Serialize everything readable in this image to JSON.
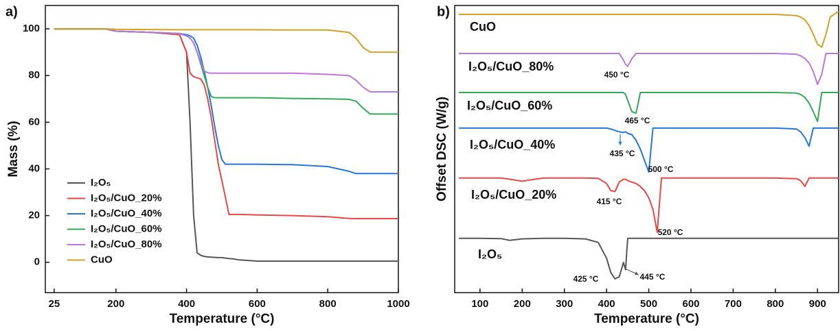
{
  "chart_data": [
    {
      "type": "line",
      "panel_label": "a)",
      "x_label": "Temperature (°C)",
      "y_label": "Mass (%)",
      "xlim": [
        0,
        1000
      ],
      "xticks": [
        25,
        200,
        400,
        600,
        800,
        1000
      ],
      "ylim": [
        -13,
        110
      ],
      "yticks": [
        0,
        20,
        40,
        60,
        80,
        100
      ],
      "legend": "lower left",
      "x": [
        25,
        100,
        170,
        200,
        300,
        380,
        400,
        410,
        420,
        430,
        440,
        450,
        460,
        470,
        480,
        490,
        500,
        510,
        520,
        530,
        550,
        600,
        700,
        800,
        860,
        880,
        900,
        920,
        950,
        1000
      ],
      "series": [
        {
          "name": "I₂O₅",
          "color": "#555555",
          "values": [
            100,
            100,
            100,
            99,
            98.5,
            97.5,
            90,
            60,
            20,
            4,
            3,
            2.5,
            2.3,
            2.2,
            2.1,
            2,
            2,
            1.8,
            1.6,
            1.5,
            1,
            0.5,
            0.5,
            0.5,
            0.5,
            0.5,
            0.5,
            0.5,
            0.5,
            0.5
          ]
        },
        {
          "name": "I₂O₅/CuO_20%",
          "color": "#ee4444",
          "values": [
            100,
            100,
            100,
            99,
            98.5,
            97.5,
            90,
            81,
            79.5,
            79,
            78.5,
            76,
            70,
            62,
            52,
            42,
            35,
            28,
            20.5,
            20.5,
            20.5,
            20.3,
            20,
            19.5,
            18.8,
            18.7,
            18.7,
            18.7,
            18.7,
            18.7
          ]
        },
        {
          "name": "I₂O₅/CuO_40%",
          "color": "#2277dd",
          "values": [
            100,
            100,
            100,
            99,
            98.5,
            98,
            97.5,
            97,
            96,
            93,
            88,
            82,
            75,
            67,
            58,
            50,
            44,
            42,
            42,
            42,
            42,
            42,
            41.8,
            41,
            39,
            38,
            38,
            38,
            38,
            38
          ]
        },
        {
          "name": "I₂O₅/CuO_60%",
          "color": "#33aa55",
          "values": [
            100,
            100,
            100,
            99,
            98.5,
            98,
            97,
            96,
            94,
            90,
            85,
            80,
            75,
            71,
            70.5,
            70.5,
            70.5,
            70.5,
            70.5,
            70.5,
            70.5,
            70.5,
            70.2,
            70,
            69.8,
            69,
            66,
            63.5,
            63.5,
            63.5
          ]
        },
        {
          "name": "I₂O₅/CuO_80%",
          "color": "#bb77dd",
          "values": [
            100,
            100,
            100,
            99,
            98.5,
            98,
            97,
            96,
            94,
            90,
            86,
            82,
            81.2,
            81,
            81,
            81,
            81,
            81,
            81,
            81,
            81,
            81,
            81,
            80.5,
            80,
            78,
            75,
            73,
            73,
            73
          ]
        },
        {
          "name": "CuO",
          "color": "#d4a020",
          "values": [
            100,
            100,
            100,
            99.8,
            99.7,
            99.6,
            99.6,
            99.6,
            99.6,
            99.6,
            99.6,
            99.6,
            99.6,
            99.6,
            99.6,
            99.6,
            99.6,
            99.6,
            99.6,
            99.6,
            99.6,
            99.6,
            99.5,
            99.5,
            98.5,
            96,
            92,
            90,
            90,
            90
          ]
        }
      ]
    },
    {
      "type": "line",
      "panel_label": "b)",
      "x_label": "Temperature (°C)",
      "y_label": "Offset DSC (W/g)",
      "xlim": [
        40,
        950
      ],
      "xticks": [
        100,
        200,
        300,
        400,
        500,
        600,
        700,
        800,
        900
      ],
      "ylim": [
        0,
        100
      ],
      "x": [
        50,
        100,
        150,
        170,
        200,
        250,
        300,
        350,
        380,
        400,
        410,
        420,
        430,
        440,
        445,
        450,
        460,
        470,
        480,
        490,
        500,
        510,
        520,
        530,
        550,
        600,
        700,
        800,
        850,
        860,
        870,
        880,
        890,
        900,
        910,
        920,
        930,
        950
      ],
      "series": [
        {
          "name": "CuO",
          "color": "#d4a020",
          "values": [
            96.9,
            96.9,
            96.9,
            96.9,
            96.9,
            96.9,
            96.9,
            96.9,
            96.9,
            96.9,
            96.9,
            96.9,
            96.9,
            96.9,
            96.9,
            96.9,
            96.9,
            96.9,
            96.9,
            96.9,
            96.9,
            96.9,
            96.9,
            96.9,
            96.9,
            96.9,
            96.9,
            96.9,
            96.5,
            96,
            95,
            93,
            90,
            86.5,
            85.5,
            90,
            96,
            98
          ]
        },
        {
          "name": "I₂O₅/CuO_80%",
          "color": "#bb77dd",
          "values": [
            83.3,
            83.3,
            83.3,
            83.3,
            83.3,
            83.3,
            83.3,
            83.3,
            83.3,
            83.3,
            83.3,
            83.3,
            83.3,
            81,
            79.5,
            78.8,
            81.5,
            83.3,
            83.3,
            83.3,
            83.3,
            83.3,
            83.3,
            83.3,
            83.3,
            83.3,
            83.3,
            83.3,
            83,
            82.5,
            81.5,
            80,
            77,
            72.5,
            76,
            83.3,
            83.3,
            83.3
          ]
        },
        {
          "name": "I₂O₅/CuO_60%",
          "color": "#33aa55",
          "values": [
            69.7,
            69.7,
            69.7,
            69.7,
            69.7,
            69.7,
            69.7,
            69.7,
            69.7,
            69.7,
            69.7,
            69.7,
            69.7,
            69.7,
            69,
            67,
            63,
            62.5,
            69.7,
            69.7,
            69.7,
            69.7,
            69.7,
            69.7,
            69.7,
            69.7,
            69.7,
            69.7,
            69.5,
            69,
            68,
            66,
            63,
            59.6,
            69.7,
            69.7,
            69.7,
            69.7
          ]
        },
        {
          "name": "I₂O₅/CuO_40%",
          "color": "#2277dd",
          "values": [
            57.3,
            57.3,
            57.3,
            57.3,
            57.3,
            57.3,
            57.3,
            57.3,
            57.3,
            57.3,
            57,
            56.5,
            56,
            55.8,
            56,
            55.5,
            55,
            53,
            50,
            46,
            42,
            57.3,
            57.3,
            57.3,
            57.3,
            57.3,
            57.3,
            57.3,
            57,
            56,
            54,
            51,
            57.3,
            57.3,
            57.3,
            57.3,
            57.3,
            57.3
          ]
        },
        {
          "name": "I₂O₅/CuO_20%",
          "color": "#ee4444",
          "values": [
            39.9,
            39.9,
            39.9,
            39.5,
            38.8,
            39.9,
            39.9,
            39.9,
            39.8,
            38,
            35.5,
            35.2,
            38.5,
            39.5,
            39.5,
            39,
            38.5,
            38,
            37,
            35.5,
            33,
            29,
            21,
            39.9,
            39.9,
            39.9,
            39.9,
            39.9,
            39.7,
            39,
            37,
            39.9,
            39.9,
            39.9,
            39.9,
            39.9,
            39.9,
            39.9
          ]
        },
        {
          "name": "I₂O₅",
          "color": "#555555",
          "values": [
            18.9,
            18.9,
            18.8,
            18.2,
            18.7,
            18.9,
            18.9,
            18.7,
            17.5,
            12,
            7,
            4.8,
            5.5,
            10.5,
            8,
            18.9,
            18.9,
            18.9,
            18.9,
            18.9,
            18.9,
            18.9,
            18.9,
            18.9,
            18.9,
            18.9,
            18.9,
            18.9,
            18.9,
            18.9,
            18.9,
            18.9,
            18.9,
            18.9,
            18.9,
            18.9,
            18.9,
            18.9
          ]
        }
      ],
      "annotations": [
        "450 °C",
        "465 °C",
        "435 °C",
        "500 °C",
        "415 °C",
        "520 °C",
        "425 °C",
        "445 °C"
      ]
    }
  ]
}
